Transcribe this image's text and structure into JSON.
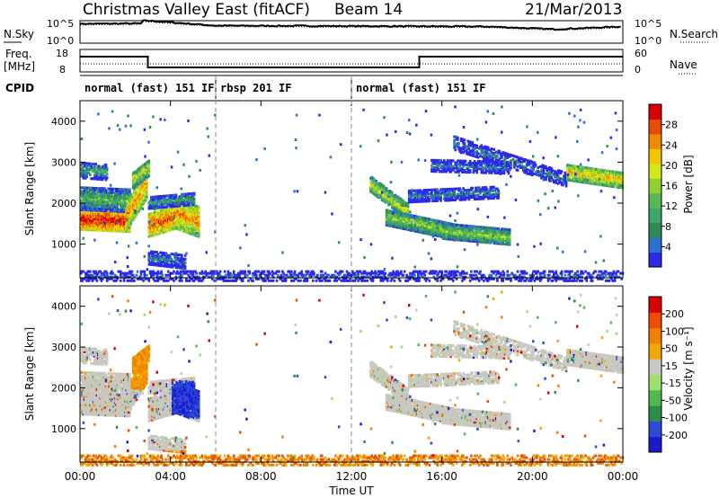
{
  "header": {
    "title": "Christmas Valley East (fitACF)",
    "beam": "Beam 14",
    "date": "21/Mar/2013"
  },
  "panels": {
    "noise": {
      "left_label": "N.Sky",
      "right_label": "N.Search",
      "left_ticks": [
        "10^5",
        "10^0"
      ],
      "right_ticks": [
        "10^5",
        "10^0"
      ]
    },
    "freq": {
      "left_label_1": "Freq.",
      "left_label_2": "[MHz]",
      "right_label": "Nave",
      "left_ticks": [
        "18",
        "8"
      ],
      "right_ticks": [
        "60",
        "0"
      ]
    },
    "cpid": {
      "label": "CPID",
      "segments": [
        {
          "label": "normal (fast) 151 IF",
          "start_hour": 0,
          "end_hour": 6
        },
        {
          "label": "rbsp 201 IF",
          "start_hour": 6,
          "end_hour": 12
        },
        {
          "label": "normal (fast) 151 IF",
          "start_hour": 12,
          "end_hour": 24
        }
      ]
    }
  },
  "xaxis": {
    "label": "Time UT",
    "ticks": [
      "00:00",
      "04:00",
      "08:00",
      "12:00",
      "16:00",
      "20:00",
      "00:00"
    ]
  },
  "power_panel": {
    "ylabel": "Slant Range [km]",
    "yticks": [
      "1000",
      "2000",
      "3000",
      "4000"
    ],
    "colorbar_label": "Power [dB]",
    "colorbar_ticks": [
      "28",
      "24",
      "20",
      "16",
      "12",
      "8",
      "4"
    ],
    "colors": [
      "#2a2ae8",
      "#2f6fd0",
      "#2e8b57",
      "#3fa66a",
      "#55b855",
      "#8fd033",
      "#d6e61c",
      "#f5c400",
      "#f08a00",
      "#e84a00",
      "#d80000"
    ]
  },
  "velocity_panel": {
    "ylabel": "Slant Range [km]",
    "yticks": [
      "1000",
      "2000",
      "3000",
      "4000"
    ],
    "colorbar_label": "Velocity [m s⁻¹]",
    "colorbar_ticks": [
      "200",
      "100",
      "50",
      "15",
      "-15",
      "-50",
      "-100",
      "-200"
    ],
    "colors": [
      "#1a1acf",
      "#2e4bd6",
      "#2c8c4a",
      "#4fb84f",
      "#9fe06a",
      "#c8c8c0",
      "#f2a800",
      "#f08000",
      "#ec4b00",
      "#d80000"
    ]
  },
  "chart_data": [
    {
      "type": "line",
      "title": "Christmas Valley East (fitACF)",
      "series": [
        {
          "name": "N.Sky",
          "x_hours": [
            0,
            2.8,
            3,
            6,
            12,
            18,
            21,
            24
          ],
          "values_log10": [
            4.3,
            4.4,
            5.0,
            3.9,
            3.8,
            3.7,
            3.1,
            3.7
          ]
        }
      ],
      "ylim_log10": [
        0,
        5
      ]
    },
    {
      "type": "line",
      "series": [
        {
          "name": "Freq.",
          "x_hours": [
            0,
            3.0,
            3.0,
            15.0,
            15.0,
            24
          ],
          "values": [
            14.8,
            14.8,
            10.0,
            10.0,
            14.8,
            14.8
          ]
        }
      ],
      "ylim": [
        8,
        18
      ]
    },
    {
      "type": "heatmap",
      "ylabel": "Slant Range [km]",
      "xlabel": "Time UT",
      "ylim": [
        180,
        4500
      ],
      "xlim_hours": [
        0,
        24
      ],
      "colorbar_range": [
        0,
        30
      ]
    },
    {
      "type": "heatmap",
      "ylabel": "Slant Range [km]",
      "xlabel": "Time UT",
      "ylim": [
        180,
        4500
      ],
      "xlim_hours": [
        0,
        24
      ],
      "colorbar_range": [
        -200,
        200
      ]
    }
  ]
}
